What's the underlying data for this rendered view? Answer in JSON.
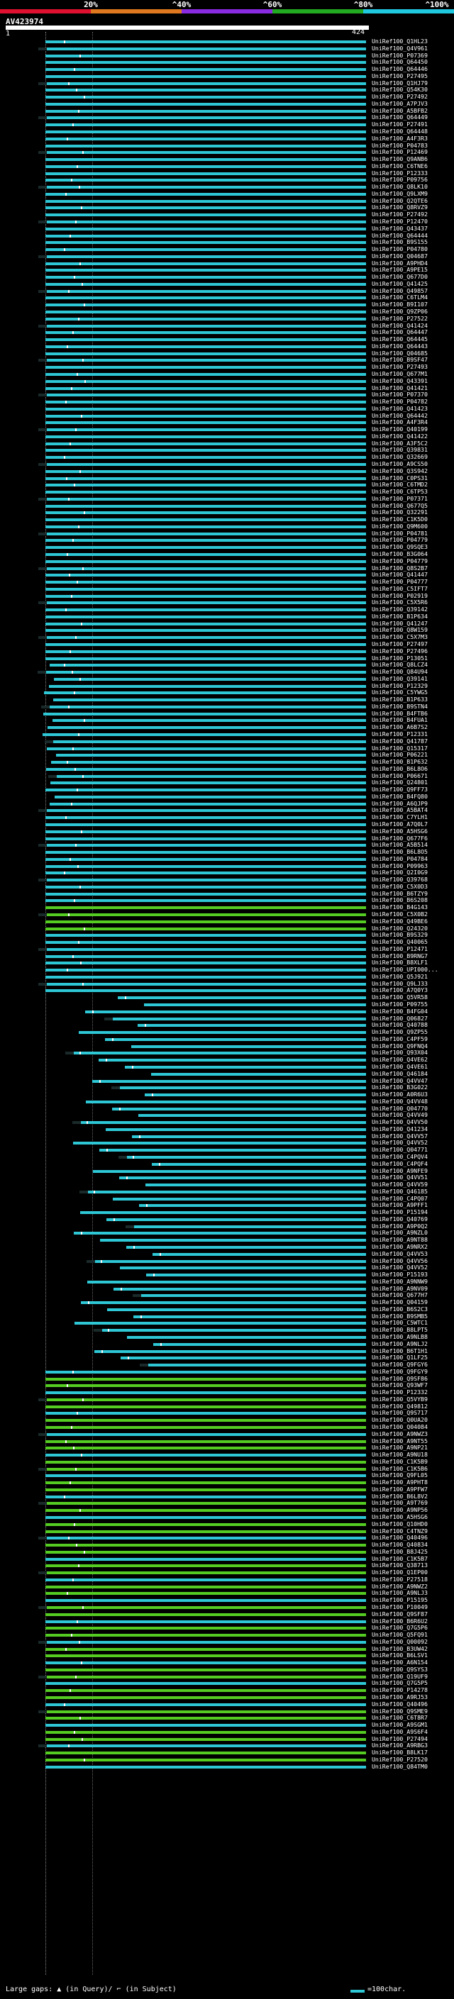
{
  "scale": {
    "segments": [
      {
        "label": "20%",
        "color": "#e01030"
      },
      {
        "label": "^40%",
        "color": "#e07820"
      },
      {
        "label": "^60%",
        "color": "#8a2be2"
      },
      {
        "label": "^80%",
        "color": "#22aa22"
      },
      {
        "label": "^100%",
        "color": "#20c8e0"
      }
    ]
  },
  "query": {
    "title": "AV423974",
    "start": "1",
    "end": "424"
  },
  "colors": {
    "high": "#2ec7d6",
    "mid": "#55cc22",
    "tick": "#ffffff"
  },
  "hits": [
    "UniRef100_Q1HL23",
    "UniRef100_Q4V961",
    "UniRef100_P07369",
    "UniRef100_Q64450",
    "UniRef100_Q64446",
    "UniRef100_P27495",
    "UniRef100_Q1HJ79",
    "UniRef100_Q54K30",
    "UniRef100_P27492",
    "UniRef100_A7PJV3",
    "UniRef100_A5BFB2",
    "UniRef100_Q64449",
    "UniRef100_P27491",
    "UniRef100_Q64448",
    "UniRef100_A4F3R3",
    "UniRef100_P04783",
    "UniRef100_P12469",
    "UniRef100_Q9ANB6",
    "UniRef100_C6TNE6",
    "UniRef100_P12333",
    "UniRef100_P09756",
    "UniRef100_Q8LK10",
    "UniRef100_Q9LXM9",
    "UniRef100_Q2QTE6",
    "UniRef100_Q8RVZ9",
    "UniRef100_P27492",
    "UniRef100_P12470",
    "UniRef100_Q43437",
    "UniRef100_Q64444",
    "UniRef100_B9S155",
    "UniRef100_P04780",
    "UniRef100_Q04687",
    "UniRef100_A9PHD4",
    "UniRef100_A9PE15",
    "UniRef100_Q677D0",
    "UniRef100_Q41425",
    "UniRef100_Q49857",
    "UniRef100_C6TLM4",
    "UniRef100_B9I107",
    "UniRef100_Q9ZP06",
    "UniRef100_P27522",
    "UniRef100_Q41424",
    "UniRef100_Q64447",
    "UniRef100_Q64445",
    "UniRef100_Q64443",
    "UniRef100_Q04685",
    "UniRef100_B9SF47",
    "UniRef100_P27493",
    "UniRef100_Q677M1",
    "UniRef100_Q43391",
    "UniRef100_Q41421",
    "UniRef100_P07370",
    "UniRef100_P04782",
    "UniRef100_Q41423",
    "UniRef100_Q64442",
    "UniRef100_A4F3R4",
    "UniRef100_Q40199",
    "UniRef100_Q41422",
    "UniRef100_A3F5C2",
    "UniRef100_Q39831",
    "UniRef100_Q32669",
    "UniRef100_A9CS50",
    "UniRef100_Q3S942",
    "UniRef100_C0PS31",
    "UniRef100_C6TMD2",
    "UniRef100_C6TP53",
    "UniRef100_P07371",
    "UniRef100_Q677Q5",
    "UniRef100_Q32291",
    "UniRef100_C1K5D0",
    "UniRef100_Q9M600",
    "UniRef100_P04781",
    "UniRef100_P04779",
    "UniRef100_Q9SQE3",
    "UniRef100_B3G064",
    "UniRef100_P04779",
    "UniRef100_Q8S2B7",
    "UniRef100_Q41447",
    "UniRef100_P04777",
    "UniRef100_C5IFT7",
    "UniRef100_P02919",
    "UniRef100_C5X5R6",
    "UniRef100_Q39142",
    "UniRef100_B1P634",
    "UniRef100_Q41247",
    "UniRef100_Q8W159",
    "UniRef100_C5X7M3",
    "UniRef100_P27497",
    "UniRef100_P27496",
    "UniRef100_P13051",
    "UniRef100_Q8LCZ4",
    "UniRef100_Q84U94",
    "UniRef100_Q39141",
    "UniRef100_P12329",
    "UniRef100_C5YWG5",
    "UniRef100_B1P633",
    "UniRef100_B9STN4",
    "UniRef100_B4FTB6",
    "UniRef100_B4FUA1",
    "UniRef100_A6B7S2",
    "UniRef100_P12331",
    "UniRef100_Q41787",
    "UniRef100_Q15317",
    "UniRef100_P06221",
    "UniRef100_B1P632",
    "UniRef100_B6L8O6",
    "UniRef100_P06671",
    "UniRef100_Q24801",
    "UniRef100_Q9FF73",
    "UniRef100_B4FQ80",
    "UniRef100_A6QJP9",
    "UniRef100_A5BAT4",
    "UniRef100_C7YLH1",
    "UniRef100_A7Q0L7",
    "UniRef100_A5HSG6",
    "UniRef100_Q677F6",
    "UniRef100_A5B514",
    "UniRef100_B6L8O5",
    "UniRef100_P04784",
    "UniRef100_P09963",
    "UniRef100_Q2I0G9",
    "UniRef100_Q39768",
    "UniRef100_C5X0D3",
    "UniRef100_B6TZY9",
    "UniRef100_B6S208",
    "UniRef100_B4G143",
    "UniRef100_C5X0B2",
    "UniRef100_Q49BE6",
    "UniRef100_Q24320",
    "UniRef100_B9S329",
    "UniRef100_Q40065",
    "UniRef100_P12471",
    "UniRef100_B9RNG7",
    "UniRef100_B8XLF1",
    "UniRef100_UPI000...",
    "UniRef100_Q5J921",
    "UniRef100_Q9LJ33",
    "UniRef100_A7Q0Y3",
    "UniRef100_Q5VR58",
    "UniRef100_P09755",
    "UniRef100_B4FG04",
    "UniRef100_Q06827",
    "UniRef100_Q40788",
    "UniRef100_Q9ZP55",
    "UniRef100_C4PF59",
    "UniRef100_Q9FNQ4",
    "UniRef100_Q93X04",
    "UniRef100_Q4VE62",
    "UniRef100_Q4VE61",
    "UniRef100_Q46184",
    "UniRef100_Q4VV47",
    "UniRef100_B3G022",
    "UniRef100_A0R6U3",
    "UniRef100_Q4VV48",
    "UniRef100_Q04770",
    "UniRef100_Q4VV49",
    "UniRef100_Q4VV50",
    "UniRef100_Q41234",
    "UniRef100_Q4VV57",
    "UniRef100_Q4VV52",
    "UniRef100_Q04771",
    "UniRef100_C4PQV4",
    "UniRef100_C4PQF4",
    "UniRef100_A9NFE9",
    "UniRef100_Q4VV51",
    "UniRef100_Q4VV59",
    "UniRef100_Q46185",
    "UniRef100_C4PQ07",
    "UniRef100_A9PFF1",
    "UniRef100_P15194",
    "UniRef100_Q40769",
    "UniRef100_A9P0Q2",
    "UniRef100_A9NZL0",
    "UniRef100_A9NT88",
    "UniRef100_A9NRX2",
    "UniRef100_Q4VV53",
    "UniRef100_Q4VV56",
    "UniRef100_Q4VV52",
    "UniRef100_P15193",
    "UniRef100_A9NNW9",
    "UniRef100_A9NV09",
    "UniRef100_Q677H7",
    "UniRef100_Q04159",
    "UniRef100_B6S2C3",
    "UniRef100_B9SMB5",
    "UniRef100_C5WTC1",
    "UniRef100_B8LPT5",
    "UniRef100_A9NLB8",
    "UniRef100_A9NLJ2",
    "UniRef100_B6T1H1",
    "UniRef100_Q1LF25",
    "UniRef100_Q9FGY6",
    "UniRef100_Q9FGY9",
    "UniRef100_Q9SF86",
    "UniRef100_Q93WF7",
    "UniRef100_P12332",
    "UniRef100_Q5VYB9",
    "UniRef100_Q49812",
    "UniRef100_Q9S717",
    "UniRef100_Q0UA20",
    "UniRef100_Q04084",
    "UniRef100_A9NWZ3",
    "UniRef100_A9NT55",
    "UniRef100_A9NP21",
    "UniRef100_A9NU18",
    "UniRef100_C1K5B9",
    "UniRef100_C1K5B6",
    "UniRef100_Q9FL05",
    "UniRef100_A9PHT8",
    "UniRef100_A9PFW7",
    "UniRef100_B6L8V2",
    "UniRef100_A9T769",
    "UniRef100_A9NP56",
    "UniRef100_A5HSG6",
    "UniRef100_Q10HD0",
    "UniRef100_C4TNZ9",
    "UniRef100_Q40496",
    "UniRef100_Q40834",
    "UniRef100_B8J425",
    "UniRef100_C1K5B7",
    "UniRef100_Q38713",
    "UniRef100_Q1EP00",
    "UniRef100_P27518",
    "UniRef100_A9NWZ2",
    "UniRef100_A9NLJ3",
    "UniRef100_P15195",
    "UniRef100_P10049",
    "UniRef100_Q9SF87",
    "UniRef100_B6R6U2",
    "UniRef100_Q7G5P6",
    "UniRef100_Q5FQ91",
    "UniRef100_Q00092",
    "UniRef100_B3UW42",
    "UniRef100_B6LSV1",
    "UniRef100_A6N154",
    "UniRef100_Q9SYS3",
    "UniRef100_Q19UF9",
    "UniRef100_Q7G5P5",
    "UniRef100_P14278",
    "UniRef100_A9RJ53",
    "UniRef100_Q40496",
    "UniRef100_Q9SME9",
    "UniRef100_C6T8R7",
    "UniRef100_A9SGM1",
    "UniRef100_A9S6F4",
    "UniRef100_P27494",
    "UniRef100_A9RBG3",
    "UniRef100_B8LK17",
    "UniRef100_P27520",
    "UniRef100_Q84TM0"
  ],
  "footer": {
    "text": "Large gaps: ▲ (in Query)/ ⌐ (in Subject)",
    "legend": "=100char."
  }
}
